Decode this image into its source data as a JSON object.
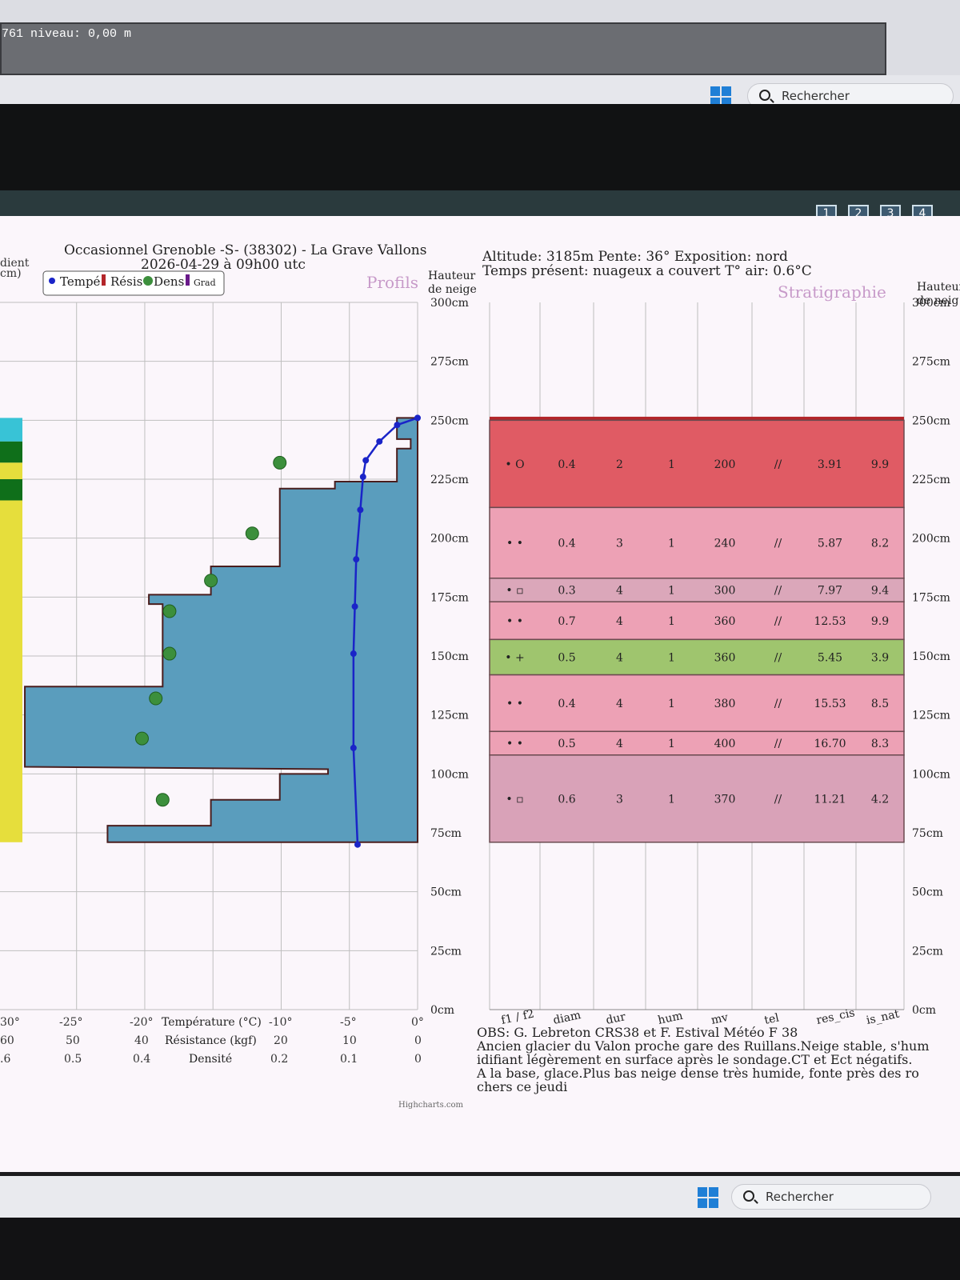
{
  "top": {
    "level_text": "761 niveau:  0,00 m"
  },
  "taskbar": {
    "search_label": "Rechercher"
  },
  "page_buttons": [
    "1",
    "2",
    "3",
    "4"
  ],
  "header": {
    "title": "Occasionnel Grenoble -S- (38302) - La Grave Vallons",
    "datetime": "2026-04-29 à 09h00 utc",
    "altitude": "Altitude: 3185m Pente: 36° Exposition: nord",
    "weather": "Temps présent: nuageux a couvert T° air: 0.6°C",
    "left_cut": "dient",
    "left_cut2": "cm)"
  },
  "profile": {
    "title": "Profils",
    "legend": [
      "Tempé",
      "Résis",
      "Dens",
      "Grad"
    ],
    "height_label_1": "Hauteur",
    "height_label_2": "de neige",
    "height_ticks": [
      "300cm",
      "275cm",
      "250cm",
      "225cm",
      "200cm",
      "175cm",
      "150cm",
      "125cm",
      "100cm",
      "75cm",
      "50cm",
      "25cm",
      "0cm"
    ],
    "temp_axis": {
      "label": "Température (°C)",
      "ticks": [
        "30°",
        "-25°",
        "-20°",
        "-10°",
        "-5°",
        "0°"
      ]
    },
    "res_axis": {
      "label": "Résistance (kgf)",
      "ticks": [
        "60",
        "50",
        "40",
        "20",
        "10",
        "0"
      ]
    },
    "dens_axis": {
      "label": "Densité",
      "ticks": [
        ".6",
        "0.5",
        "0.4",
        "0.2",
        "0.1",
        "0"
      ]
    },
    "credit": "Highcharts.com"
  },
  "chart_data": {
    "type": "line",
    "temperature_profile": {
      "height_cm": [
        251,
        248,
        241,
        233,
        226,
        212,
        191,
        171,
        151,
        111,
        70
      ],
      "temp_c": [
        0,
        -1.5,
        -2.8,
        -3.8,
        -4,
        -4.2,
        -4.5,
        -4.6,
        -4.7,
        -4.7,
        -4.4
      ]
    },
    "density_points": {
      "height_cm": [
        232,
        202,
        182,
        169,
        151,
        132,
        115,
        89
      ],
      "density": [
        0.2,
        0.24,
        0.3,
        0.36,
        0.36,
        0.38,
        0.4,
        0.37
      ]
    },
    "resistance_steps": [
      {
        "top": 251,
        "bottom": 242,
        "res": 3
      },
      {
        "top": 242,
        "bottom": 238,
        "res": 1
      },
      {
        "top": 238,
        "bottom": 224,
        "res": 3
      },
      {
        "top": 224,
        "bottom": 221,
        "res": 12
      },
      {
        "top": 221,
        "bottom": 188,
        "res": 20
      },
      {
        "top": 188,
        "bottom": 176,
        "res": 30
      },
      {
        "top": 176,
        "bottom": 172,
        "res": 39
      },
      {
        "top": 172,
        "bottom": 137,
        "res": 37
      },
      {
        "top": 137,
        "bottom": 103,
        "res": 57
      },
      {
        "top": 102,
        "bottom": 100,
        "res": 13
      },
      {
        "top": 100,
        "bottom": 89,
        "res": 20
      },
      {
        "top": 89,
        "bottom": 78,
        "res": 30
      },
      {
        "top": 78,
        "bottom": 71,
        "res": 45
      }
    ],
    "xlim_temp": [
      -30,
      0
    ],
    "ylim_cm": [
      0,
      300
    ]
  },
  "strat": {
    "title": "Stratigraphie",
    "height_label_1": "Hauteur",
    "height_label_2": "de neig",
    "columns": [
      "f1 / f2",
      "diam",
      "dur",
      "hum",
      "mv",
      "tel",
      "res_cis",
      "is_nat"
    ],
    "layers": [
      {
        "top": 250,
        "bottom": 213,
        "color": "#e05b64",
        "grain": "• O",
        "diam": "0.4",
        "dur": "2",
        "hum": "1",
        "mv": "200",
        "tel": "//",
        "res_cis": "3.91",
        "is_nat": "9.9"
      },
      {
        "top": 213,
        "bottom": 183,
        "color": "#eda1b5",
        "grain": "• •",
        "diam": "0.4",
        "dur": "3",
        "hum": "1",
        "mv": "240",
        "tel": "//",
        "res_cis": "5.87",
        "is_nat": "8.2"
      },
      {
        "top": 183,
        "bottom": 173,
        "color": "#dba7ba",
        "grain": "• ▫",
        "diam": "0.3",
        "dur": "4",
        "hum": "1",
        "mv": "300",
        "tel": "//",
        "res_cis": "7.97",
        "is_nat": "9.4"
      },
      {
        "top": 173,
        "bottom": 157,
        "color": "#eda1b5",
        "grain": "• •",
        "diam": "0.7",
        "dur": "4",
        "hum": "1",
        "mv": "360",
        "tel": "//",
        "res_cis": "12.53",
        "is_nat": "9.9"
      },
      {
        "top": 157,
        "bottom": 142,
        "color": "#9fc56e",
        "grain": "• +",
        "diam": "0.5",
        "dur": "4",
        "hum": "1",
        "mv": "360",
        "tel": "//",
        "res_cis": "5.45",
        "is_nat": "3.9"
      },
      {
        "top": 142,
        "bottom": 118,
        "color": "#eda1b5",
        "grain": "• •",
        "diam": "0.4",
        "dur": "4",
        "hum": "1",
        "mv": "380",
        "tel": "//",
        "res_cis": "15.53",
        "is_nat": "8.5"
      },
      {
        "top": 118,
        "bottom": 108,
        "color": "#eda1b5",
        "grain": "• •",
        "diam": "0.5",
        "dur": "4",
        "hum": "1",
        "mv": "400",
        "tel": "//",
        "res_cis": "16.70",
        "is_nat": "8.3"
      },
      {
        "top": 108,
        "bottom": 71,
        "color": "#d9a2b8",
        "grain": "• ▫",
        "diam": "0.6",
        "dur": "3",
        "hum": "1",
        "mv": "370",
        "tel": "//",
        "res_cis": "11.21",
        "is_nat": "4.2"
      }
    ],
    "height_ticks": [
      "300cm",
      "275cm",
      "250cm",
      "225cm",
      "200cm",
      "175cm",
      "150cm",
      "125cm",
      "100cm",
      "75cm",
      "50cm",
      "25cm",
      "0cm"
    ]
  },
  "obs": {
    "line1": "OBS: G. Lebreton CRS38 et F. Estival Météo F 38",
    "line2": "Ancien glacier du Valon proche gare des Ruillans.Neige stable, s'hum",
    "line3": "idifiant légèrement en surface après le sondage.CT et Ect négatifs.",
    "line4": "A la base, glace.Plus bas neige dense très humide, fonte près des ro",
    "line5": "chers ce jeudi"
  },
  "gradient_bar": [
    "#38c3d6",
    "#0f6f1a",
    "#e6de3c",
    "#0f6f1a",
    "#e6de3c"
  ],
  "colors": {
    "temp": "#1a24c8",
    "res_fill": "#5a9dbd",
    "dens": "#3c8f3c"
  }
}
